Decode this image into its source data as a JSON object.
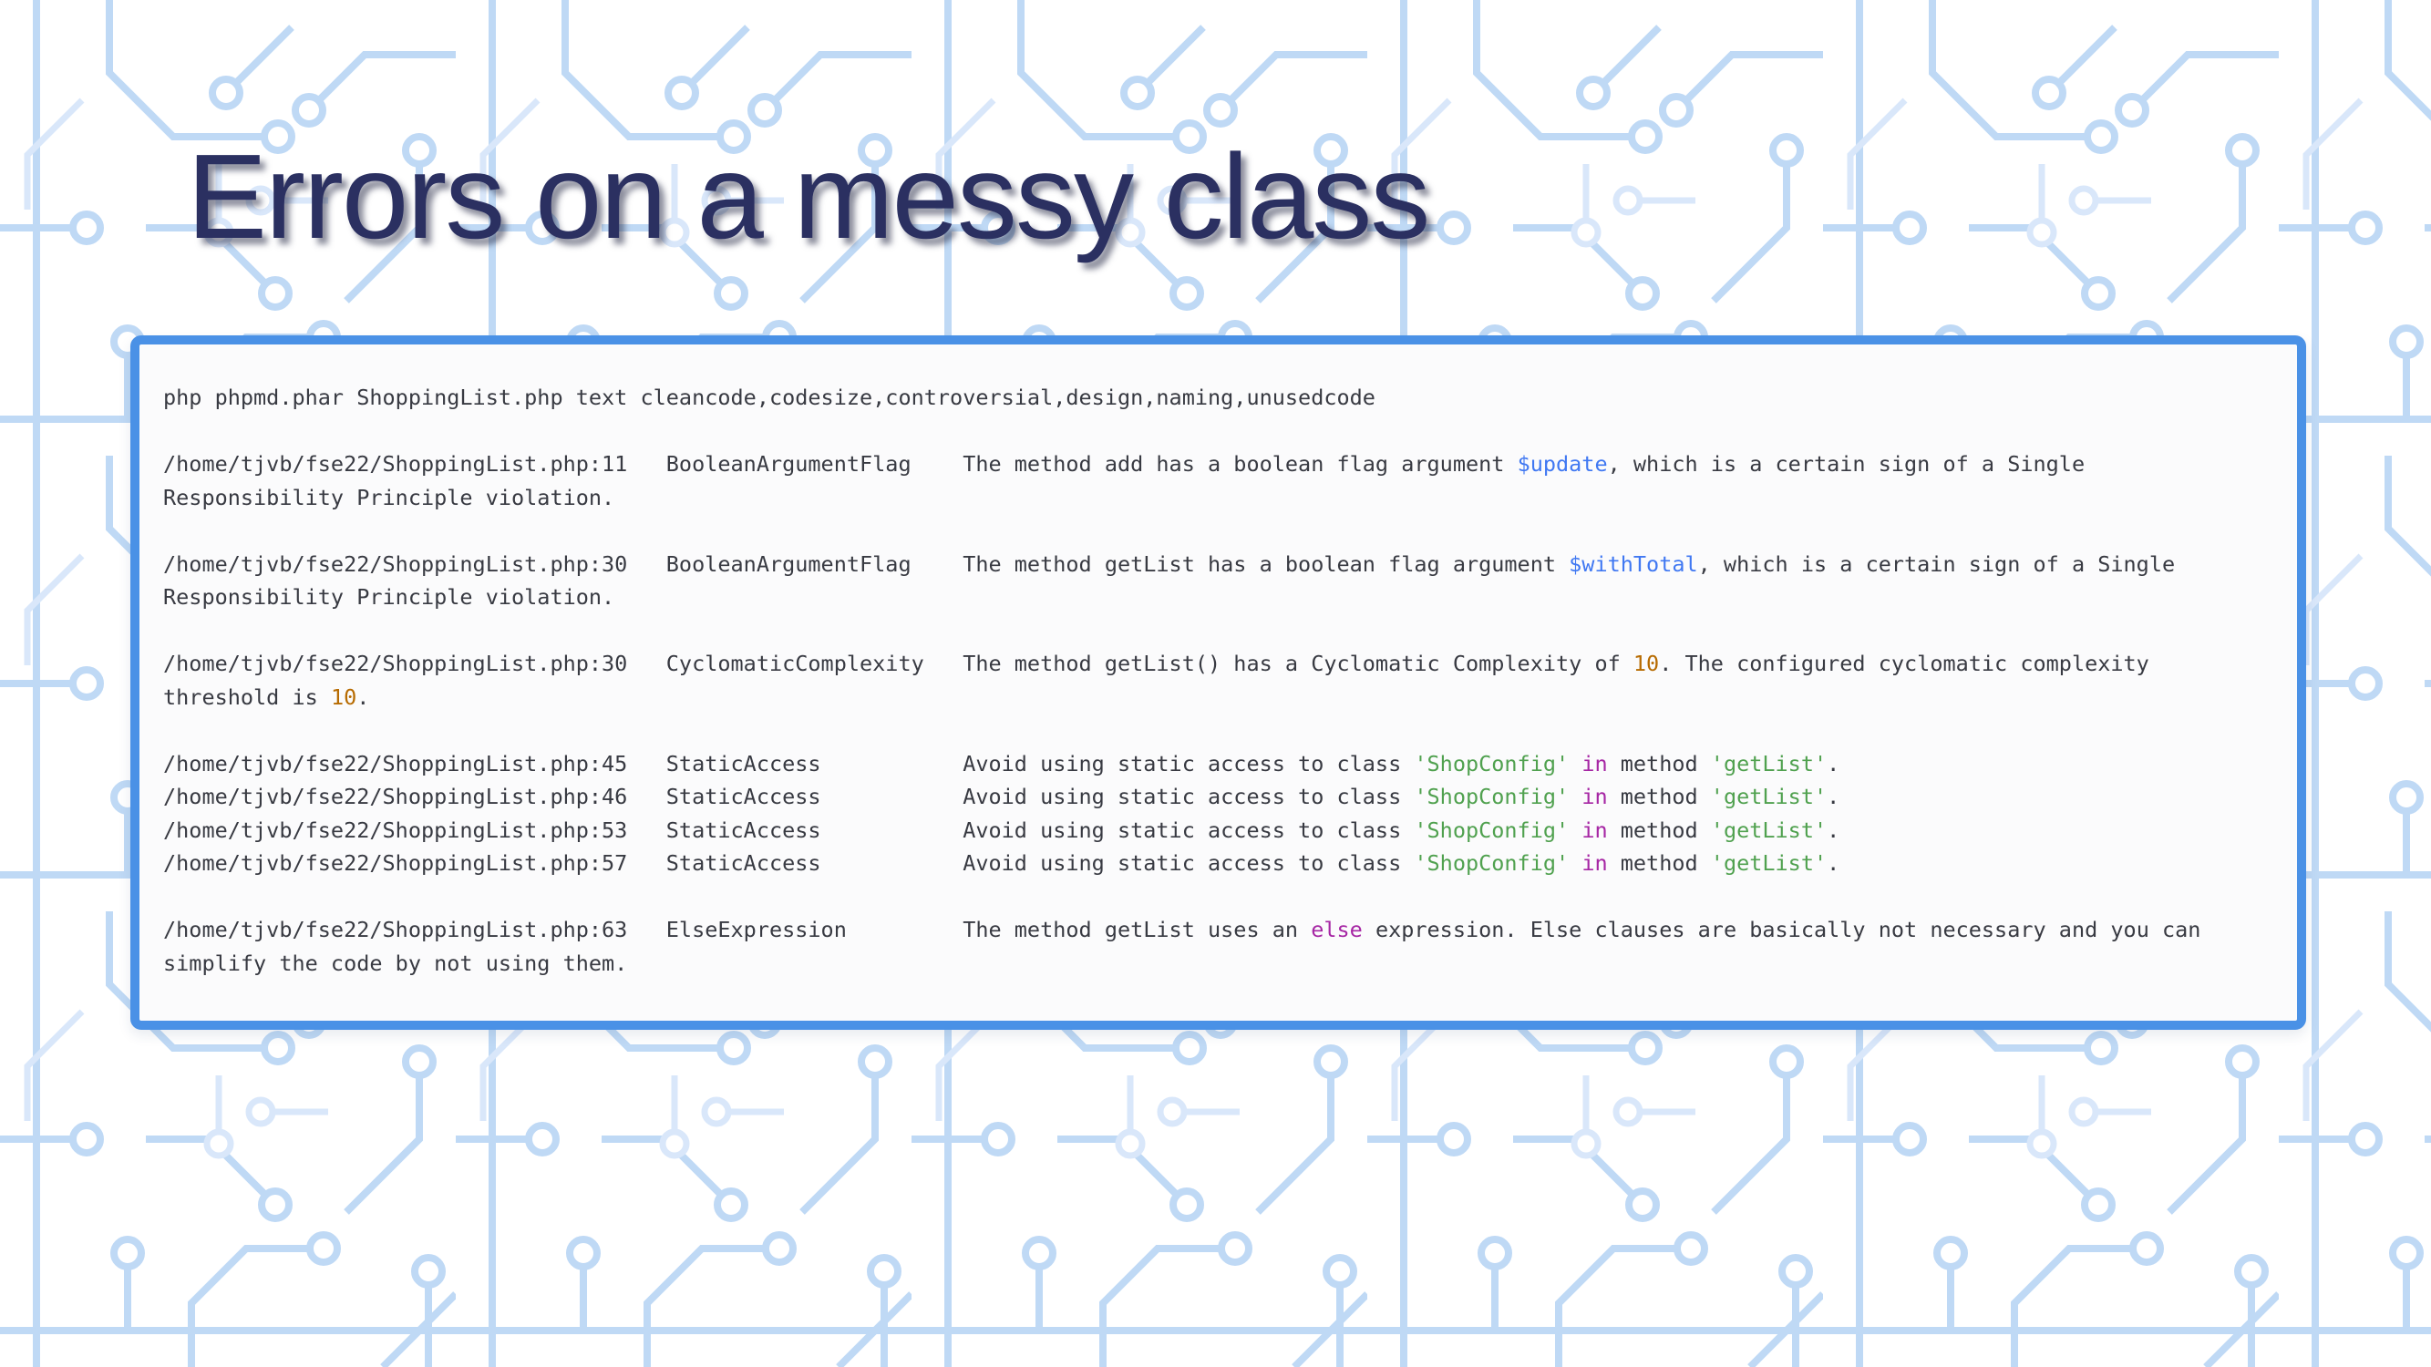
{
  "slide": {
    "title": "Errors on a messy class"
  },
  "colors": {
    "title": "#2b3061",
    "border": "#4a91e6",
    "termbg": "#fbfbfc",
    "fg": "#383a42",
    "blue": "#4078f2",
    "green": "#50a14f",
    "magenta": "#a626a4",
    "orange": "#b76b01",
    "pattern": "#bfd9f5"
  },
  "icons": {
    "background": "circuit-board-pattern"
  },
  "terminal": {
    "command": "php phpmd.phar ShoppingList.php text cleancode,codesize,controversial,design,naming,unusedcode",
    "lines": [
      {
        "segments": [
          {
            "text": "php phpmd.phar ShoppingList.php text cleancode,codesize,controversial,design,naming,unusedcode",
            "color": "fg"
          }
        ]
      },
      {
        "segments": []
      },
      {
        "segments": [
          {
            "text": "/home/tjvb/fse22/ShoppingList.php:11   BooleanArgumentFlag    The method add has a boolean flag argument ",
            "color": "fg"
          },
          {
            "text": "$update",
            "color": "blue"
          },
          {
            "text": ", which is a certain sign of a Single",
            "color": "fg"
          }
        ]
      },
      {
        "segments": [
          {
            "text": "Responsibility Principle violation.",
            "color": "fg"
          }
        ]
      },
      {
        "segments": []
      },
      {
        "segments": [
          {
            "text": "/home/tjvb/fse22/ShoppingList.php:30   BooleanArgumentFlag    The method getList has a boolean flag argument ",
            "color": "fg"
          },
          {
            "text": "$withTotal",
            "color": "blue"
          },
          {
            "text": ", which is a certain sign of a Single",
            "color": "fg"
          }
        ]
      },
      {
        "segments": [
          {
            "text": "Responsibility Principle violation.",
            "color": "fg"
          }
        ]
      },
      {
        "segments": []
      },
      {
        "segments": [
          {
            "text": "/home/tjvb/fse22/ShoppingList.php:30   CyclomaticComplexity   The method getList() has a Cyclomatic Complexity of ",
            "color": "fg"
          },
          {
            "text": "10",
            "color": "orange"
          },
          {
            "text": ". The configured cyclomatic complexity",
            "color": "fg"
          }
        ]
      },
      {
        "segments": [
          {
            "text": "threshold is ",
            "color": "fg"
          },
          {
            "text": "10",
            "color": "orange"
          },
          {
            "text": ".",
            "color": "fg"
          }
        ]
      },
      {
        "segments": []
      },
      {
        "segments": [
          {
            "text": "/home/tjvb/fse22/ShoppingList.php:45   StaticAccess           Avoid using static access to class ",
            "color": "fg"
          },
          {
            "text": "'ShopConfig'",
            "color": "green"
          },
          {
            "text": " ",
            "color": "fg"
          },
          {
            "text": "in",
            "color": "magenta"
          },
          {
            "text": " method ",
            "color": "fg"
          },
          {
            "text": "'getList'",
            "color": "green"
          },
          {
            "text": ".",
            "color": "fg"
          }
        ]
      },
      {
        "segments": [
          {
            "text": "/home/tjvb/fse22/ShoppingList.php:46   StaticAccess           Avoid using static access to class ",
            "color": "fg"
          },
          {
            "text": "'ShopConfig'",
            "color": "green"
          },
          {
            "text": " ",
            "color": "fg"
          },
          {
            "text": "in",
            "color": "magenta"
          },
          {
            "text": " method ",
            "color": "fg"
          },
          {
            "text": "'getList'",
            "color": "green"
          },
          {
            "text": ".",
            "color": "fg"
          }
        ]
      },
      {
        "segments": [
          {
            "text": "/home/tjvb/fse22/ShoppingList.php:53   StaticAccess           Avoid using static access to class ",
            "color": "fg"
          },
          {
            "text": "'ShopConfig'",
            "color": "green"
          },
          {
            "text": " ",
            "color": "fg"
          },
          {
            "text": "in",
            "color": "magenta"
          },
          {
            "text": " method ",
            "color": "fg"
          },
          {
            "text": "'getList'",
            "color": "green"
          },
          {
            "text": ".",
            "color": "fg"
          }
        ]
      },
      {
        "segments": [
          {
            "text": "/home/tjvb/fse22/ShoppingList.php:57   StaticAccess           Avoid using static access to class ",
            "color": "fg"
          },
          {
            "text": "'ShopConfig'",
            "color": "green"
          },
          {
            "text": " ",
            "color": "fg"
          },
          {
            "text": "in",
            "color": "magenta"
          },
          {
            "text": " method ",
            "color": "fg"
          },
          {
            "text": "'getList'",
            "color": "green"
          },
          {
            "text": ".",
            "color": "fg"
          }
        ]
      },
      {
        "segments": []
      },
      {
        "segments": [
          {
            "text": "/home/tjvb/fse22/ShoppingList.php:63   ElseExpression         The method getList uses an ",
            "color": "fg"
          },
          {
            "text": "else",
            "color": "magenta"
          },
          {
            "text": " expression. Else clauses are basically not necessary and you can",
            "color": "fg"
          }
        ]
      },
      {
        "segments": [
          {
            "text": "simplify the code by not using them.",
            "color": "fg"
          }
        ]
      }
    ]
  }
}
